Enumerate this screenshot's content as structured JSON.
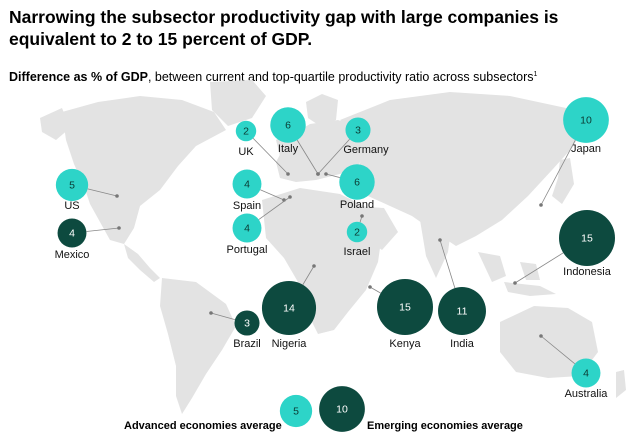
{
  "title": "Narrowing the subsector productivity gap with large companies is equivalent to 2 to 15 percent of GDP.",
  "subtitle": {
    "bold": "Difference as % of GDP",
    "rest": ", between current and top-quartile productivity ratio across subsectors",
    "footnote": "1"
  },
  "colors": {
    "advanced": "#2dd4c8",
    "emerging": "#0d4a3f",
    "map": "#e3e3e3",
    "connector": "#888888"
  },
  "chart_data": {
    "type": "bubble-map",
    "unit": "% of GDP",
    "series": [
      {
        "name": "Advanced economies",
        "color": "#2dd4c8"
      },
      {
        "name": "Emerging economies",
        "color": "#0d4a3f"
      }
    ],
    "countries": [
      {
        "name": "UK",
        "value": 2,
        "group": "advanced"
      },
      {
        "name": "Italy",
        "value": 6,
        "group": "advanced"
      },
      {
        "name": "Germany",
        "value": 3,
        "group": "advanced"
      },
      {
        "name": "Japan",
        "value": 10,
        "group": "advanced"
      },
      {
        "name": "US",
        "value": 5,
        "group": "advanced"
      },
      {
        "name": "Spain",
        "value": 4,
        "group": "advanced"
      },
      {
        "name": "Poland",
        "value": 6,
        "group": "advanced"
      },
      {
        "name": "Portugal",
        "value": 4,
        "group": "advanced"
      },
      {
        "name": "Israel",
        "value": 2,
        "group": "advanced"
      },
      {
        "name": "Australia",
        "value": 4,
        "group": "advanced"
      },
      {
        "name": "Mexico",
        "value": 4,
        "group": "emerging"
      },
      {
        "name": "Indonesia",
        "value": 15,
        "group": "emerging"
      },
      {
        "name": "Brazil",
        "value": 3,
        "group": "emerging"
      },
      {
        "name": "Nigeria",
        "value": 14,
        "group": "emerging"
      },
      {
        "name": "Kenya",
        "value": 15,
        "group": "emerging"
      },
      {
        "name": "India",
        "value": 11,
        "group": "emerging"
      }
    ],
    "averages": [
      {
        "label": "Advanced economies average",
        "value": 5,
        "group": "advanced"
      },
      {
        "label": "Emerging economies average",
        "value": 10,
        "group": "emerging"
      }
    ]
  }
}
